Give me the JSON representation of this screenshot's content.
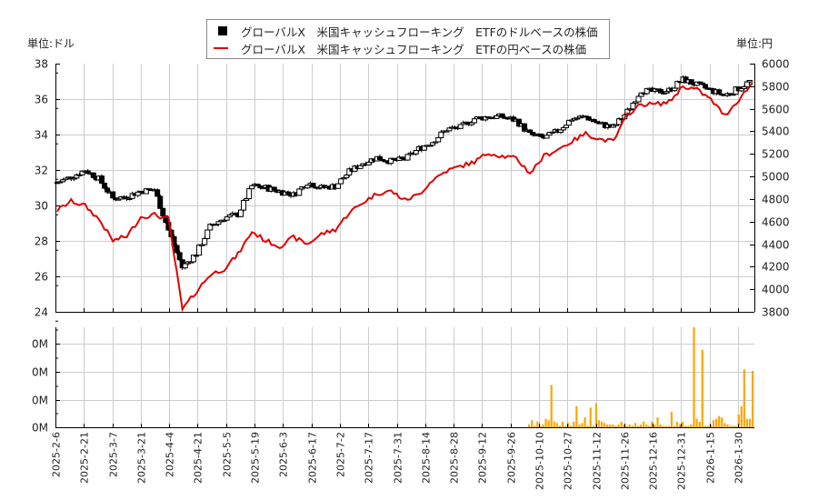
{
  "legend": {
    "series1_label": "グローバルX　米国キャッシュフローキング　ETFのドルベースの株価",
    "series2_label": "グローバルX　米国キャッシュフローキング　ETFの円ベースの株価",
    "series1_color": "#000000",
    "series2_color": "#e00000"
  },
  "axes": {
    "left_unit": "単位:ドル",
    "right_unit": "単位:円",
    "left_ticks": [
      "38",
      "36",
      "34",
      "32",
      "30",
      "28",
      "26",
      "24"
    ],
    "right_ticks": [
      "6000",
      "5800",
      "5600",
      "5400",
      "5200",
      "5000",
      "4800",
      "4600",
      "4400",
      "4200",
      "4000",
      "3800"
    ],
    "volume_ticks": [
      "0M",
      "0M",
      "0M",
      "0M"
    ],
    "date_ticks": [
      "2025-2-6",
      "2025-2-21",
      "2025-3-7",
      "2025-3-21",
      "2025-4-4",
      "2025-4-21",
      "2025-5-5",
      "2025-5-19",
      "2025-6-3",
      "2025-6-17",
      "2025-7-2",
      "2025-7-17",
      "2025-7-31",
      "2025-8-14",
      "2025-8-28",
      "2025-9-12",
      "2025-9-26",
      "2025-10-10",
      "2025-10-27",
      "2025-11-12",
      "2025-11-26",
      "2025-12-16",
      "2025-12-31",
      "2026-1-15",
      "2026-1-30"
    ]
  },
  "colors": {
    "volume_bar": "#ffa500",
    "grid": "#cccccc",
    "up_candle_fill": "#ffffff",
    "down_candle_fill": "#000000"
  },
  "chart_data": [
    {
      "type": "candlestick+line",
      "title": "グローバルX　米国キャッシュフローキング　ETF 株価",
      "xlabel": "",
      "ylabel_left": "単位:ドル",
      "ylabel_right": "単位:円",
      "ylim_left": [
        24,
        38
      ],
      "ylim_right": [
        3800,
        6000
      ],
      "grid": true,
      "legend_position": "top-center",
      "x_ticks": [
        "2025-2-6",
        "2025-2-21",
        "2025-3-7",
        "2025-3-21",
        "2025-4-4",
        "2025-4-21",
        "2025-5-5",
        "2025-5-19",
        "2025-6-3",
        "2025-6-17",
        "2025-7-2",
        "2025-7-17",
        "2025-7-31",
        "2025-8-14",
        "2025-8-28",
        "2025-9-12",
        "2025-9-26",
        "2025-10-10",
        "2025-10-27",
        "2025-11-12",
        "2025-11-26",
        "2025-12-16",
        "2025-12-31",
        "2026-1-15",
        "2026-1-30"
      ],
      "series": [
        {
          "name": "グローバルX　米国キャッシュフローキング　ETFのドルベースの株価",
          "axis": "left",
          "style": "candlestick",
          "x": [
            "2025-2-6",
            "2025-2-13",
            "2025-2-21",
            "2025-2-28",
            "2025-3-7",
            "2025-3-14",
            "2025-3-21",
            "2025-3-28",
            "2025-4-4",
            "2025-4-9",
            "2025-4-14",
            "2025-4-21",
            "2025-4-28",
            "2025-5-5",
            "2025-5-12",
            "2025-5-19",
            "2025-5-27",
            "2025-6-3",
            "2025-6-10",
            "2025-6-17",
            "2025-6-24",
            "2025-7-2",
            "2025-7-10",
            "2025-7-17",
            "2025-7-24",
            "2025-7-31",
            "2025-8-7",
            "2025-8-14",
            "2025-8-21",
            "2025-8-28",
            "2025-9-5",
            "2025-9-12",
            "2025-9-19",
            "2025-9-26",
            "2025-10-3",
            "2025-10-10",
            "2025-10-17",
            "2025-10-27",
            "2025-11-3",
            "2025-11-12",
            "2025-11-19",
            "2025-11-26",
            "2025-12-4",
            "2025-12-16",
            "2025-12-23",
            "2025-12-31",
            "2026-1-8",
            "2026-1-15",
            "2026-1-22",
            "2026-1-30",
            "2026-2-6"
          ],
          "close": [
            31.3,
            31.6,
            32.0,
            31.5,
            30.4,
            30.5,
            30.8,
            30.9,
            28.6,
            26.5,
            27.3,
            28.8,
            29.3,
            29.5,
            31.1,
            31.0,
            30.8,
            30.6,
            31.3,
            31.0,
            31.1,
            31.9,
            32.4,
            32.7,
            32.5,
            32.6,
            33.2,
            33.6,
            34.3,
            34.4,
            34.9,
            35.0,
            35.0,
            34.8,
            34.0,
            33.8,
            34.2,
            34.9,
            35.0,
            34.6,
            34.4,
            35.3,
            36.5,
            36.4,
            36.5,
            37.1,
            36.8,
            36.5,
            36.2,
            36.6,
            37.1
          ]
        },
        {
          "name": "グローバルX　米国キャッシュフローキング　ETFの円ベースの株価",
          "axis": "right",
          "style": "line",
          "x": [
            "2025-2-6",
            "2025-2-13",
            "2025-2-21",
            "2025-2-28",
            "2025-3-7",
            "2025-3-14",
            "2025-3-21",
            "2025-3-28",
            "2025-4-4",
            "2025-4-9",
            "2025-4-14",
            "2025-4-21",
            "2025-4-28",
            "2025-5-5",
            "2025-5-12",
            "2025-5-19",
            "2025-5-27",
            "2025-6-3",
            "2025-6-10",
            "2025-6-17",
            "2025-6-24",
            "2025-7-2",
            "2025-7-10",
            "2025-7-17",
            "2025-7-24",
            "2025-7-31",
            "2025-8-7",
            "2025-8-14",
            "2025-8-21",
            "2025-8-28",
            "2025-9-5",
            "2025-9-12",
            "2025-9-19",
            "2025-9-26",
            "2025-10-3",
            "2025-10-10",
            "2025-10-17",
            "2025-10-27",
            "2025-11-3",
            "2025-11-12",
            "2025-11-19",
            "2025-11-26",
            "2025-12-4",
            "2025-12-16",
            "2025-12-23",
            "2025-12-31",
            "2026-1-8",
            "2026-1-15",
            "2026-1-22",
            "2026-1-30",
            "2026-2-6"
          ],
          "values": [
            4700,
            4780,
            4740,
            4620,
            4430,
            4470,
            4640,
            4660,
            4620,
            3820,
            3980,
            4130,
            4180,
            4310,
            4510,
            4430,
            4380,
            4460,
            4400,
            4490,
            4530,
            4680,
            4770,
            4850,
            4870,
            4790,
            4840,
            4970,
            5050,
            5090,
            5130,
            5210,
            5180,
            5160,
            5030,
            5180,
            5240,
            5310,
            5380,
            5330,
            5310,
            5550,
            5640,
            5640,
            5660,
            5800,
            5770,
            5680,
            5540,
            5680,
            5830
          ]
        }
      ]
    },
    {
      "type": "bar",
      "title": "出来高",
      "ylabel": "",
      "ylim": [
        0,
        4
      ],
      "y_ticks": [
        "0M",
        "0M",
        "0M",
        "0M"
      ],
      "note": "volume in millions, axis labels rounded to 0M",
      "x_ticks": [
        "2025-2-6",
        "2025-2-21",
        "2025-3-7",
        "2025-3-21",
        "2025-4-4",
        "2025-4-21",
        "2025-5-5",
        "2025-5-19",
        "2025-6-3",
        "2025-6-17",
        "2025-7-2",
        "2025-7-17",
        "2025-7-31",
        "2025-8-14",
        "2025-8-28",
        "2025-9-12",
        "2025-9-26",
        "2025-10-10",
        "2025-10-27",
        "2025-11-12",
        "2025-11-26",
        "2025-12-16",
        "2025-12-31",
        "2026-1-15",
        "2026-1-30"
      ],
      "values": [
        0.1,
        0.25,
        0.05,
        0.2,
        0.05,
        0.1,
        0.3,
        0.25,
        1.5,
        0.2,
        0.15,
        0.05,
        0.2,
        0.05,
        0.15,
        0.05,
        0.2,
        0.75,
        0.1,
        0.15,
        0.35,
        0.05,
        0.7,
        0.05,
        0.85,
        0.25,
        0.2,
        0.15,
        0.1,
        0.1,
        0.1,
        0.05,
        0.1,
        0.2,
        0.1,
        0.05,
        0.1,
        0.05,
        0.15,
        0.05,
        0.1,
        0.2,
        0.1,
        0.05,
        0.2,
        0.1,
        0.35,
        0.1,
        0.05,
        0.05,
        0.05,
        0.55,
        0.05,
        0.2,
        0.1,
        0.2,
        0.05,
        0.05,
        0.1,
        3.55,
        0.3,
        0.2,
        2.75,
        0.05,
        0.05,
        0.1,
        0.25,
        0.3,
        0.4,
        0.35,
        0.15,
        0.1,
        0.05,
        0.05,
        0.05,
        0.45,
        0.75,
        2.05,
        0.3,
        0.3,
        2.0
      ]
    }
  ]
}
